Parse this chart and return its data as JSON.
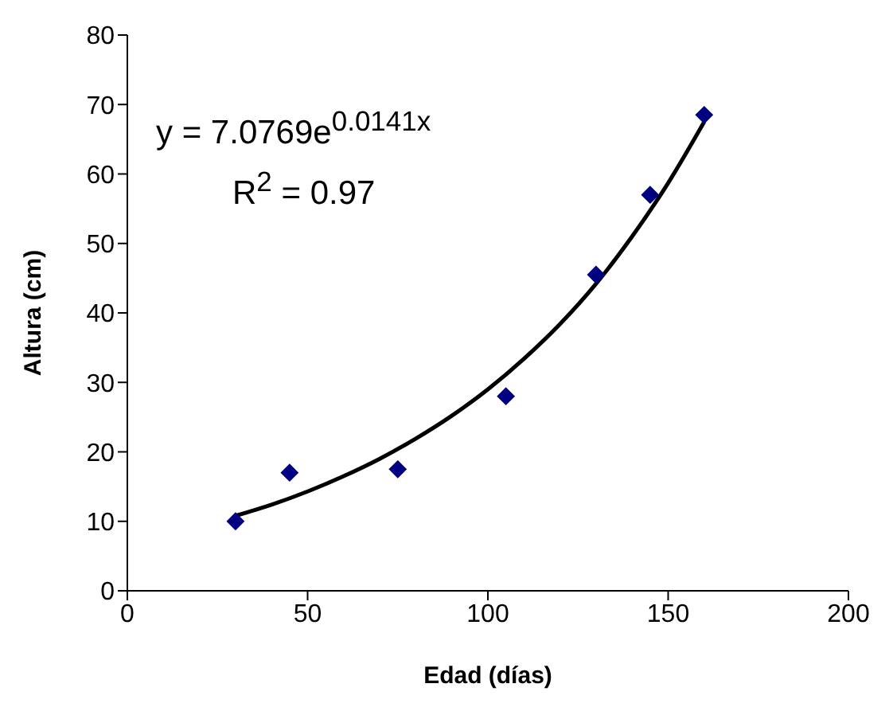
{
  "chart_data": {
    "type": "scatter",
    "xlabel": "Edad (días)",
    "ylabel": "Altura (cm)",
    "xlim": [
      0,
      200
    ],
    "xticks": [
      0,
      50,
      100,
      150,
      200
    ],
    "ylim": [
      0,
      80
    ],
    "yticks": [
      0,
      10,
      20,
      30,
      40,
      50,
      60,
      70,
      80
    ],
    "grid": false,
    "marker": "diamond",
    "annotations": [
      "y = 7.0769e$^{0.0141x}$",
      "R$^{2}$ = 0.97"
    ],
    "series": [
      {
        "type": "scatter",
        "color": "#000080",
        "x": [
          30,
          45,
          75,
          105,
          130,
          145,
          160
        ],
        "values": [
          10,
          17,
          17.5,
          28,
          45.5,
          57,
          68.5
        ]
      },
      {
        "type": "line",
        "color": "#000000",
        "marker": "none",
        "x": [
          30,
          40,
          50,
          60,
          70,
          80,
          90,
          100,
          110,
          120,
          130,
          140,
          150,
          160
        ],
        "values": [
          10.8,
          12.4,
          14.3,
          16.5,
          19,
          21.9,
          25.2,
          29,
          33.4,
          38.4,
          44.2,
          51,
          58.7,
          67.5
        ]
      }
    ]
  }
}
